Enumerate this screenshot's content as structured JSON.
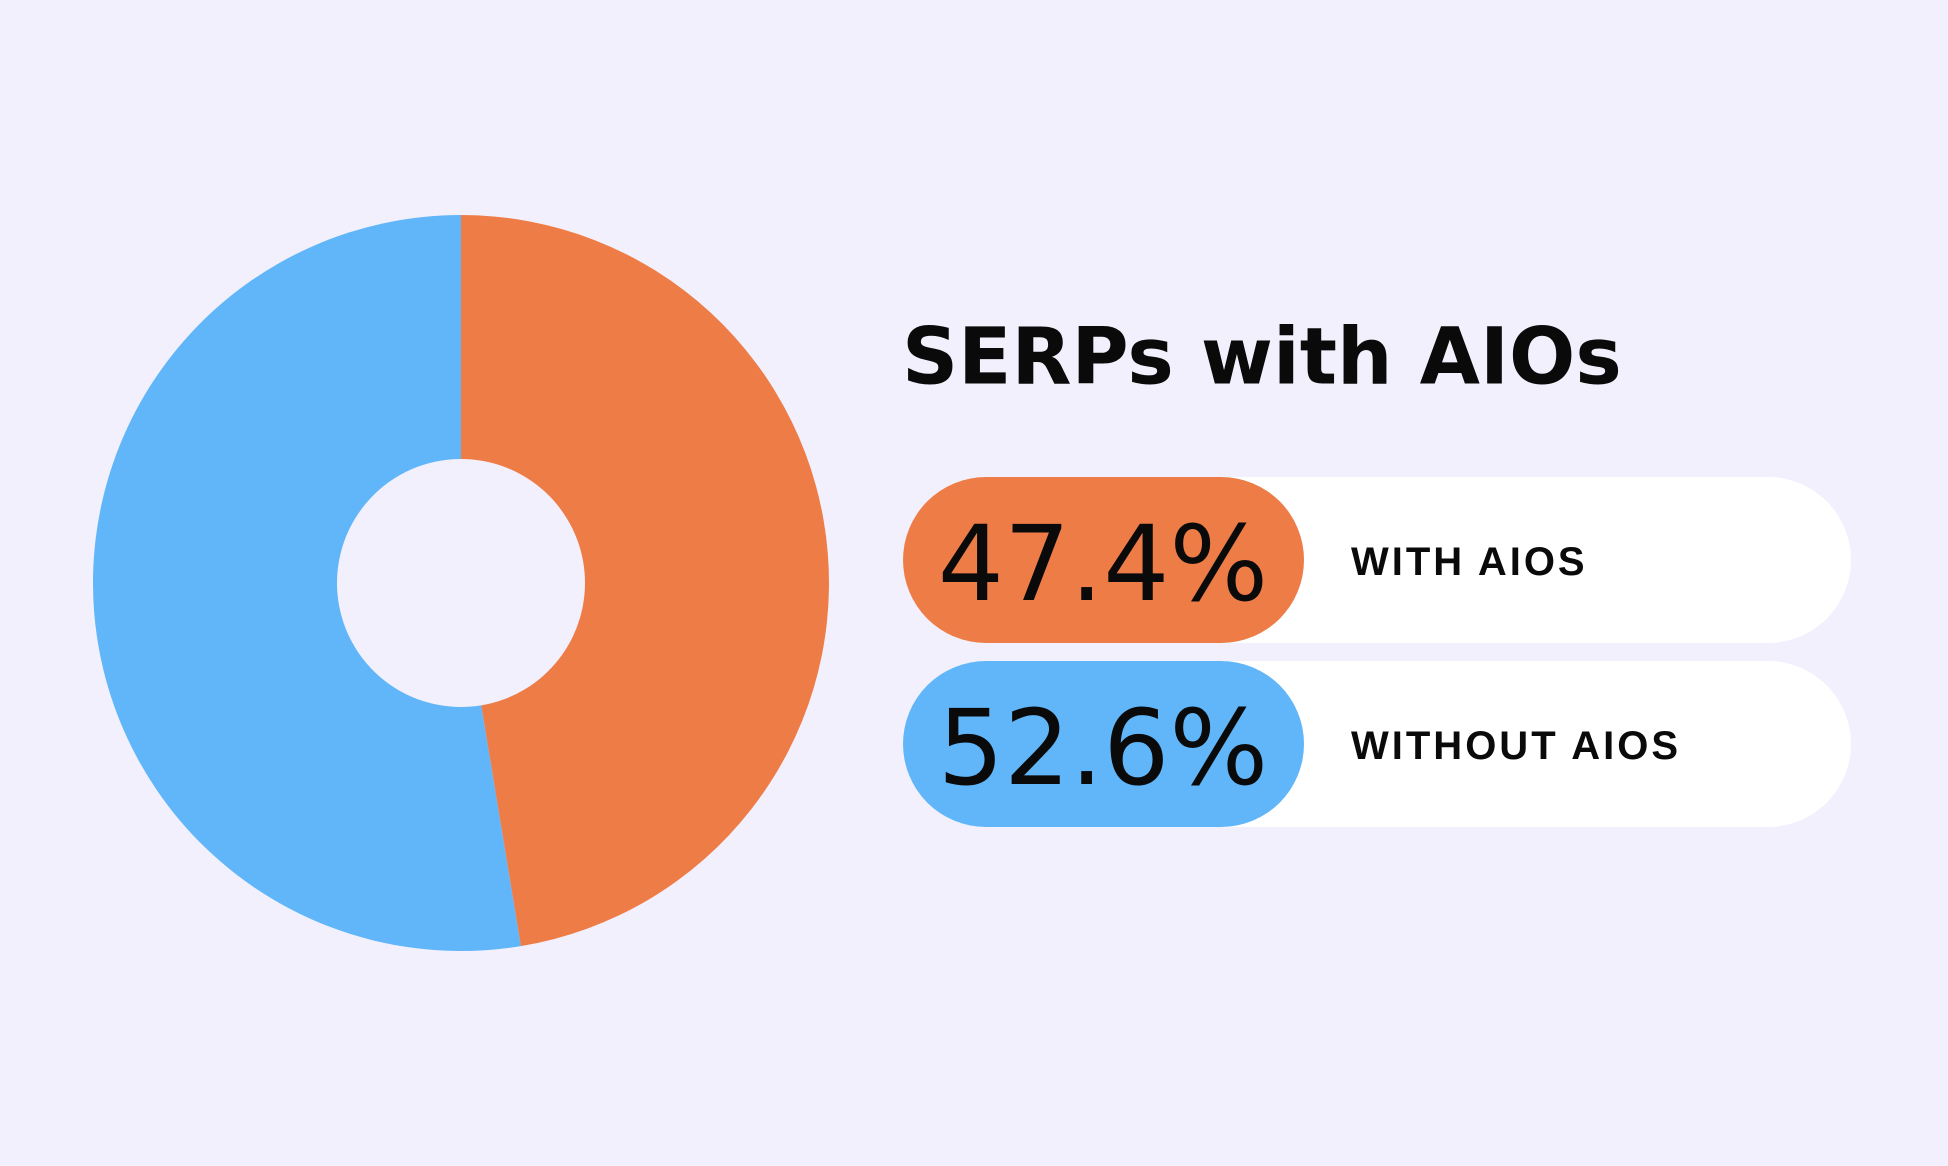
{
  "chart_data": {
    "type": "pie",
    "title": "SERPs with AIOs",
    "categories": [
      "WITH AIOS",
      "WITHOUT AIOS"
    ],
    "values": [
      47.4,
      52.6
    ],
    "value_labels": [
      "47.4%",
      "52.6%"
    ],
    "colors": [
      "#ee7c47",
      "#60b6f9"
    ],
    "donut": true
  }
}
